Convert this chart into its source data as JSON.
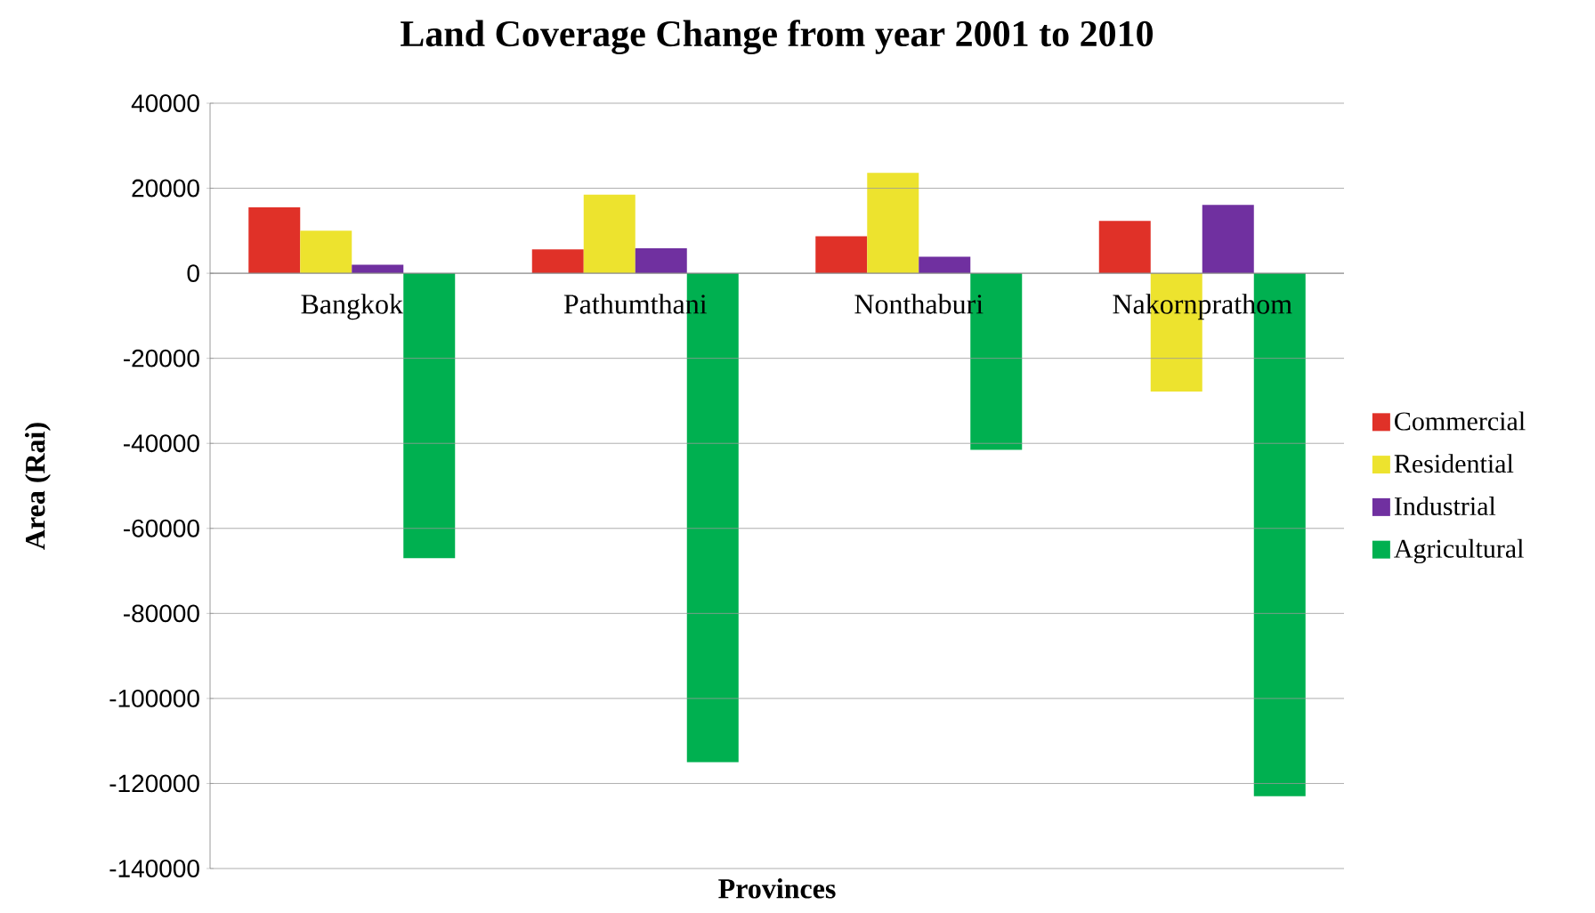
{
  "chart_data": {
    "type": "bar",
    "title": "Land Coverage Change from year 2001 to 2010",
    "xlabel": "Provinces",
    "ylabel": "Area (Rai)",
    "categories": [
      "Bangkok",
      "Pathumthani",
      "Nonthaburi",
      "Nakornprathom"
    ],
    "series": [
      {
        "name": "Commercial",
        "color": "#e03128",
        "values": [
          15500,
          5600,
          8700,
          12300
        ]
      },
      {
        "name": "Residential",
        "color": "#ede32e",
        "values": [
          10000,
          18500,
          23600,
          -27800
        ]
      },
      {
        "name": "Industrial",
        "color": "#7030a0",
        "values": [
          2000,
          5900,
          3900,
          16100
        ]
      },
      {
        "name": "Agricultural",
        "color": "#00b050",
        "values": [
          -67000,
          -115000,
          -41500,
          -123000
        ]
      }
    ],
    "ylim": [
      -140000,
      40000
    ],
    "yticks": [
      -140000,
      -120000,
      -100000,
      -80000,
      -60000,
      -40000,
      -20000,
      0,
      20000,
      40000
    ],
    "grid": "y",
    "legend": "right"
  }
}
